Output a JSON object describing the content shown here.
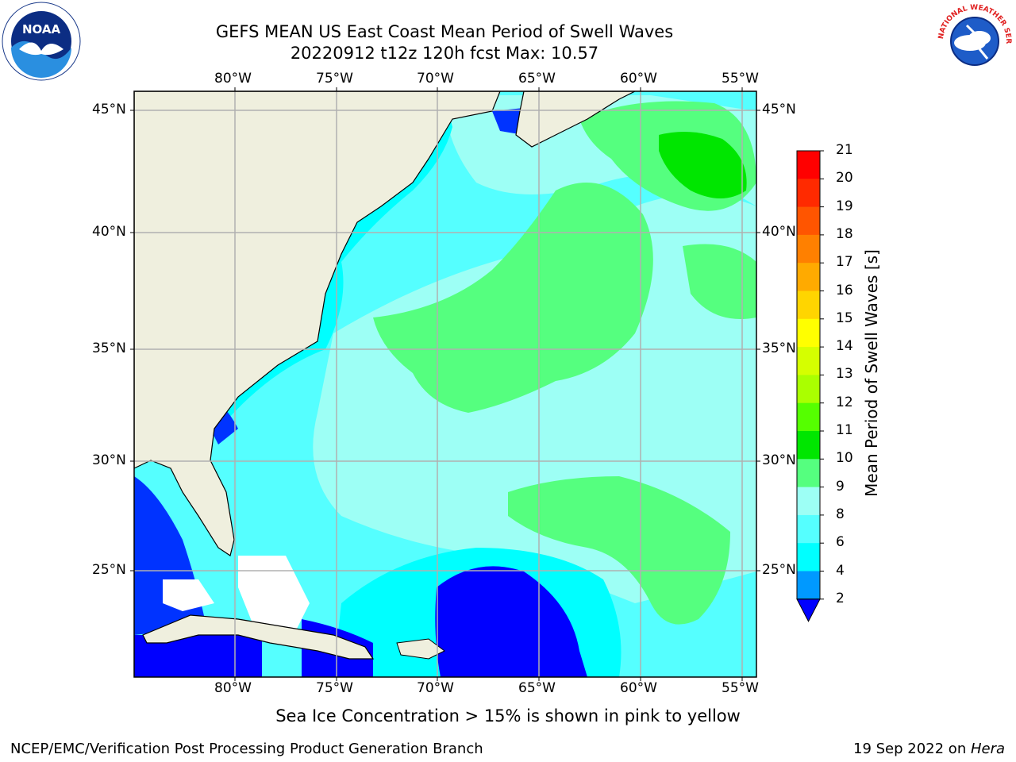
{
  "title": {
    "line1": "GEFS MEAN US East Coast Mean Period of Swell Waves",
    "line2": "20220912 t12z 120h fcst   Max: 10.57"
  },
  "map": {
    "lon_labels": [
      "80°W",
      "75°W",
      "70°W",
      "65°W",
      "60°W",
      "55°W"
    ],
    "lat_labels": [
      "45°N",
      "40°N",
      "35°N",
      "30°N",
      "25°N"
    ]
  },
  "colorbar": {
    "label": "Mean Period of Swell Waves [s]",
    "ticks": [
      "21",
      "20",
      "19",
      "18",
      "17",
      "16",
      "15",
      "14",
      "13",
      "12",
      "11",
      "10",
      "9",
      "8",
      "6",
      "4",
      "2"
    ],
    "colors": [
      "#ff0000",
      "#ff2a00",
      "#ff5500",
      "#ff8000",
      "#ffaa00",
      "#ffd500",
      "#ffff00",
      "#d5ff00",
      "#aaff00",
      "#55ff00",
      "#00e600",
      "#55ff7f",
      "#9dfff5",
      "#55ffff",
      "#00ffff",
      "#0099ff",
      "#0033ff"
    ],
    "extend_color": "#0000ff"
  },
  "logos": {
    "noaa_text": "NOAA",
    "nws_text": "NATIONAL WEATHER SERVICE"
  },
  "footer": {
    "note": "Sea Ice Concentration > 15% is shown in pink to yellow",
    "credit": "NCEP/EMC/Verification Post Processing Product Generation Branch",
    "date": "19 Sep 2022 on ",
    "machine": "Hera"
  }
}
